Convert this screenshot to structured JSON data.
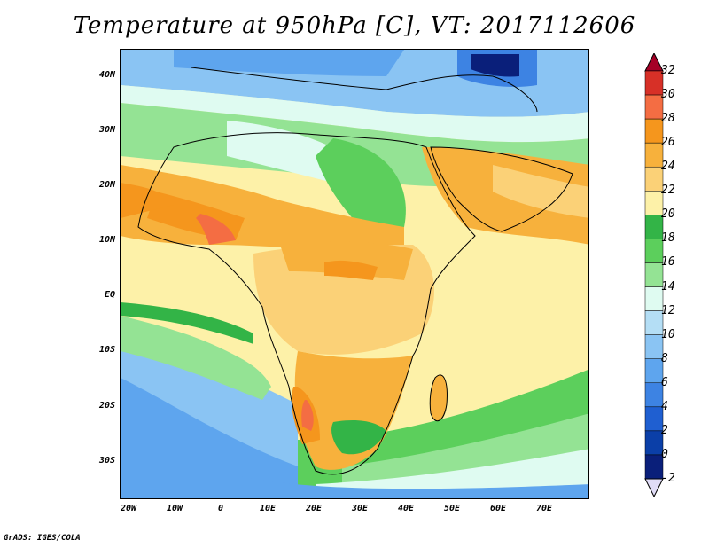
{
  "title": "Temperature at 950hPa [C], VT: 2017112606",
  "footer": "GrADS: IGES/COLA",
  "lat_ticks": [
    "40N",
    "30N",
    "20N",
    "10N",
    "EQ",
    "10S",
    "20S",
    "30S"
  ],
  "lon_ticks": [
    "20W",
    "10W",
    "0",
    "10E",
    "20E",
    "30E",
    "40E",
    "50E",
    "60E",
    "70E"
  ],
  "colorbar": {
    "labels": [
      "32",
      "30",
      "28",
      "26",
      "24",
      "22",
      "20",
      "18",
      "16",
      "14",
      "12",
      "10",
      "8",
      "6",
      "4",
      "2",
      "0",
      "-2"
    ],
    "colors": [
      "#a50026",
      "#d73027",
      "#f46d43",
      "#f5961d",
      "#f7b13c",
      "#fbd177",
      "#fdf1a8",
      "#33b447",
      "#5ccf5c",
      "#94e394",
      "#dffbf1",
      "#b4def5",
      "#8ac4f3",
      "#5ea5ee",
      "#3d83e3",
      "#1f5fd1",
      "#0b3fa8",
      "#0a1f7a",
      "#e0dcf7"
    ]
  },
  "map_colors": {
    "ocean_cool": "#8ac4f3",
    "ocean_mid": "#5ea5ee",
    "ocean_deep": "#3d83e3",
    "ocean_warm": "#fdf1a8",
    "land_warm": "#f7b13c",
    "land_hot": "#f46d43",
    "land_green": "#5ccf5c"
  }
}
